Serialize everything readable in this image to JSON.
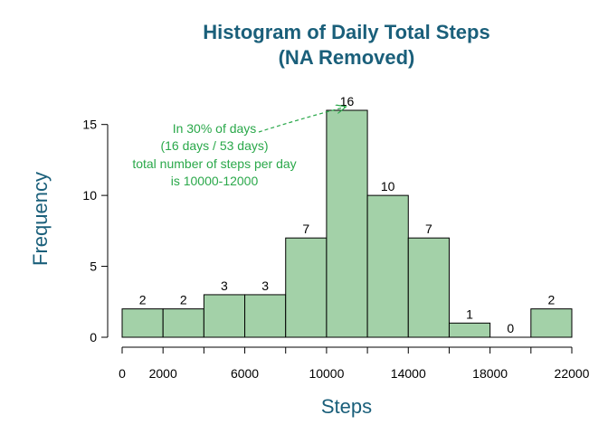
{
  "colors": {
    "title": "#1a5f7a",
    "axis_label": "#1a5f7a",
    "bar_fill": "#a3d1a8",
    "bar_stroke": "#000000",
    "annotation": "#2aa84a",
    "axis": "#000000"
  },
  "chart_data": {
    "type": "bar",
    "title_line1": "Histogram of Daily Total Steps",
    "title_line2": "(NA Removed)",
    "xlabel": "Steps",
    "ylabel": "Frequency",
    "bins": [
      {
        "start": 0,
        "end": 2000,
        "count": 2
      },
      {
        "start": 2000,
        "end": 4000,
        "count": 2
      },
      {
        "start": 4000,
        "end": 6000,
        "count": 3
      },
      {
        "start": 6000,
        "end": 8000,
        "count": 3
      },
      {
        "start": 8000,
        "end": 10000,
        "count": 7
      },
      {
        "start": 10000,
        "end": 12000,
        "count": 16
      },
      {
        "start": 12000,
        "end": 14000,
        "count": 10
      },
      {
        "start": 14000,
        "end": 16000,
        "count": 7
      },
      {
        "start": 16000,
        "end": 18000,
        "count": 1
      },
      {
        "start": 18000,
        "end": 20000,
        "count": 0
      },
      {
        "start": 20000,
        "end": 22000,
        "count": 2
      }
    ],
    "xlim": [
      0,
      22000
    ],
    "ylim": [
      0,
      16
    ],
    "x_axis_ticks": [
      0,
      2000,
      4000,
      6000,
      8000,
      10000,
      12000,
      14000,
      16000,
      18000,
      20000,
      22000
    ],
    "x_tick_labels": [
      "0",
      "2000",
      "6000",
      "10000",
      "14000",
      "18000",
      "22000"
    ],
    "x_tick_label_values": [
      0,
      2000,
      6000,
      10000,
      14000,
      18000,
      22000
    ],
    "y_ticks": [
      0,
      5,
      10,
      15
    ],
    "y_tick_labels": [
      "0",
      "5",
      "10",
      "15"
    ],
    "grid": false,
    "annotation": {
      "lines": [
        "In 30% of days",
        "(16 days / 53 days)",
        "total number of steps per day",
        "is 10000-12000"
      ],
      "target_x": 11000,
      "target_y": 16
    }
  }
}
